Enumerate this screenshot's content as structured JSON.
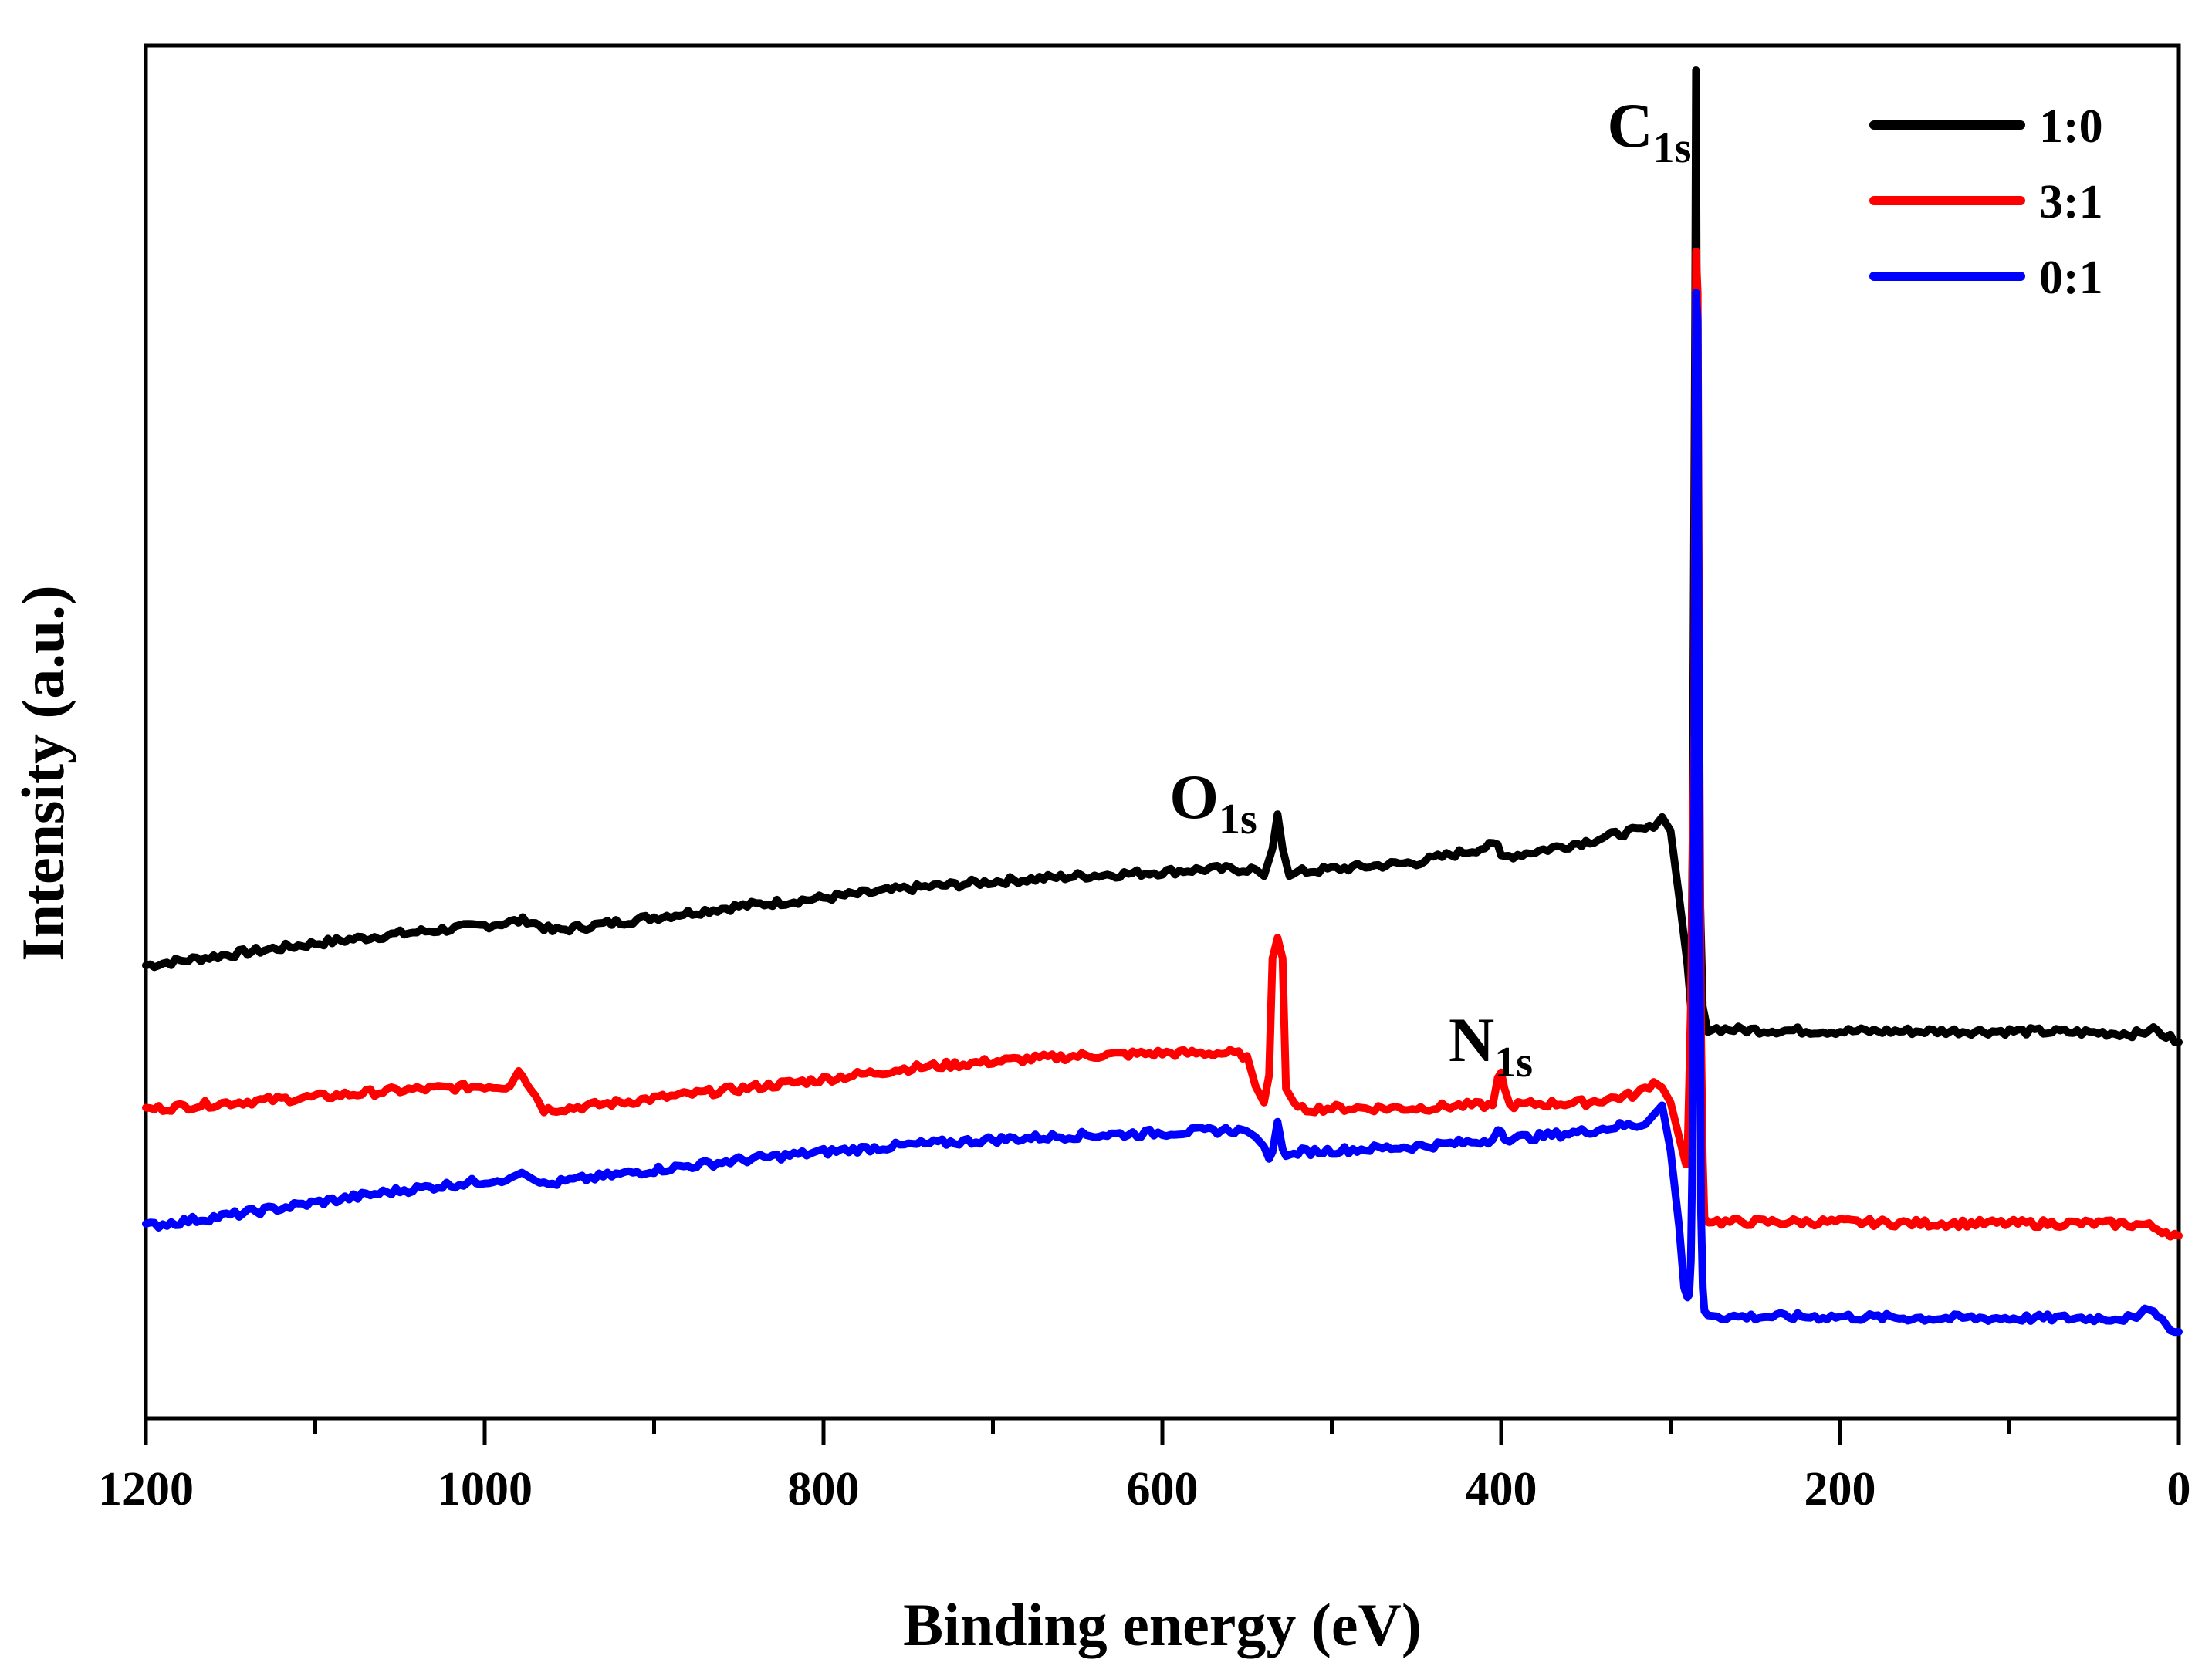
{
  "chart_data": {
    "type": "line",
    "title": "",
    "xlabel": "Binding energy (eV)",
    "ylabel": "Intensity (a.u.)",
    "xlim": [
      1200,
      0
    ],
    "x_reversed": true,
    "ylim": [
      0,
      100
    ],
    "y_ticks_shown": false,
    "grid": false,
    "legend_position": "top-right",
    "x_ticks": [
      "1200",
      "1000",
      "800",
      "600",
      "400",
      "200",
      "0"
    ],
    "x_tick_values": [
      1200,
      1000,
      800,
      600,
      400,
      200,
      0
    ],
    "x_minor_tick_values": [
      1100,
      900,
      700,
      500,
      300,
      100
    ],
    "annotations": [
      {
        "main": "C",
        "sub": "1s",
        "x": 285
      },
      {
        "main": "O",
        "sub": "1s",
        "x": 532
      },
      {
        "main": "N",
        "sub": "1s",
        "x": 400
      }
    ],
    "series": [
      {
        "name": "1:0",
        "color": "#000000",
        "x": [
          1200,
          1150,
          1100,
          1050,
          1000,
          975,
          960,
          900,
          850,
          800,
          750,
          700,
          650,
          600,
          575,
          560,
          545,
          540,
          535,
          532,
          529,
          525,
          520,
          500,
          450,
          402,
          400,
          398,
          380,
          350,
          330,
          320,
          310,
          305,
          300,
          295,
          290,
          288,
          287,
          285.5,
          285,
          284.5,
          283,
          281,
          278,
          260,
          200,
          150,
          100,
          50,
          20,
          15,
          10,
          0
        ],
        "y": [
          33.0,
          33.8,
          34.6,
          35.3,
          35.9,
          36.3,
          35.5,
          36.5,
          37.3,
          37.9,
          38.6,
          39.1,
          39.5,
          39.8,
          40.0,
          40.0,
          40.0,
          39.5,
          41.5,
          44.0,
          41.5,
          39.5,
          39.8,
          40.0,
          40.5,
          41.8,
          41.0,
          40.9,
          41.3,
          42.0,
          42.6,
          42.8,
          43.0,
          43.8,
          42.8,
          38.0,
          33.0,
          30.0,
          42.0,
          80.0,
          98.2,
          80.0,
          40.0,
          30.0,
          28.4,
          28.3,
          28.2,
          28.2,
          28.2,
          28.1,
          28.0,
          28.5,
          28.0,
          27.4
        ]
      },
      {
        "name": "3:1",
        "color": "#ff0000",
        "x": [
          1200,
          1150,
          1100,
          1050,
          1000,
          985,
          980,
          975,
          965,
          950,
          900,
          850,
          800,
          750,
          700,
          650,
          600,
          560,
          550,
          545,
          540,
          537,
          535,
          532,
          529,
          527,
          520,
          500,
          450,
          420,
          405,
          402,
          400,
          398,
          395,
          380,
          350,
          320,
          310,
          305,
          300,
          295,
          292,
          291,
          290,
          288,
          286,
          285,
          284,
          283,
          282,
          281,
          280,
          270,
          200,
          150,
          100,
          50,
          20,
          0
        ],
        "y": [
          22.5,
          23.0,
          23.4,
          23.9,
          24.2,
          24.2,
          25.3,
          24.5,
          22.5,
          22.6,
          23.3,
          24.0,
          24.7,
          25.5,
          26.0,
          26.4,
          26.6,
          26.6,
          26.4,
          24.2,
          23.0,
          25.0,
          33.5,
          35.0,
          33.5,
          24.0,
          22.5,
          22.6,
          22.6,
          22.8,
          22.8,
          24.8,
          25.2,
          24.0,
          22.8,
          22.9,
          23.0,
          23.6,
          24.5,
          24.1,
          23.0,
          20.5,
          19.0,
          18.5,
          19.0,
          30.0,
          50.0,
          85.0,
          82.0,
          50.0,
          28.0,
          19.0,
          14.5,
          14.3,
          14.3,
          14.2,
          14.2,
          14.2,
          14.1,
          13.3
        ]
      },
      {
        "name": "0:1",
        "color": "#0000ff",
        "x": [
          1200,
          1150,
          1100,
          1050,
          1000,
          985,
          978,
          970,
          965,
          950,
          900,
          850,
          800,
          750,
          700,
          650,
          600,
          560,
          550,
          545,
          540,
          537,
          535,
          532,
          529,
          527,
          520,
          500,
          450,
          420,
          405,
          402,
          400,
          398,
          395,
          380,
          350,
          330,
          315,
          310,
          305,
          300,
          295,
          292,
          290,
          289,
          288,
          287,
          286,
          285,
          284,
          283,
          282,
          281,
          280,
          278,
          270,
          200,
          150,
          100,
          50,
          25,
          20,
          15,
          10,
          0
        ],
        "y": [
          14.0,
          14.8,
          15.7,
          16.6,
          17.3,
          17.5,
          17.9,
          17.3,
          17.0,
          17.3,
          18.1,
          18.8,
          19.4,
          19.9,
          20.3,
          20.6,
          20.8,
          21.0,
          20.9,
          20.5,
          19.8,
          18.9,
          19.4,
          21.6,
          19.6,
          19.1,
          19.4,
          19.5,
          19.8,
          20.1,
          20.3,
          21.0,
          20.9,
          20.3,
          20.4,
          20.5,
          20.9,
          21.3,
          21.4,
          22.1,
          22.8,
          19.5,
          14.0,
          9.5,
          8.8,
          9.0,
          11.5,
          20.0,
          45.0,
          82.0,
          80.0,
          40.0,
          15.0,
          9.5,
          7.8,
          7.5,
          7.4,
          7.4,
          7.3,
          7.3,
          7.3,
          7.3,
          8.0,
          7.8,
          7.0,
          6.3
        ]
      }
    ]
  }
}
